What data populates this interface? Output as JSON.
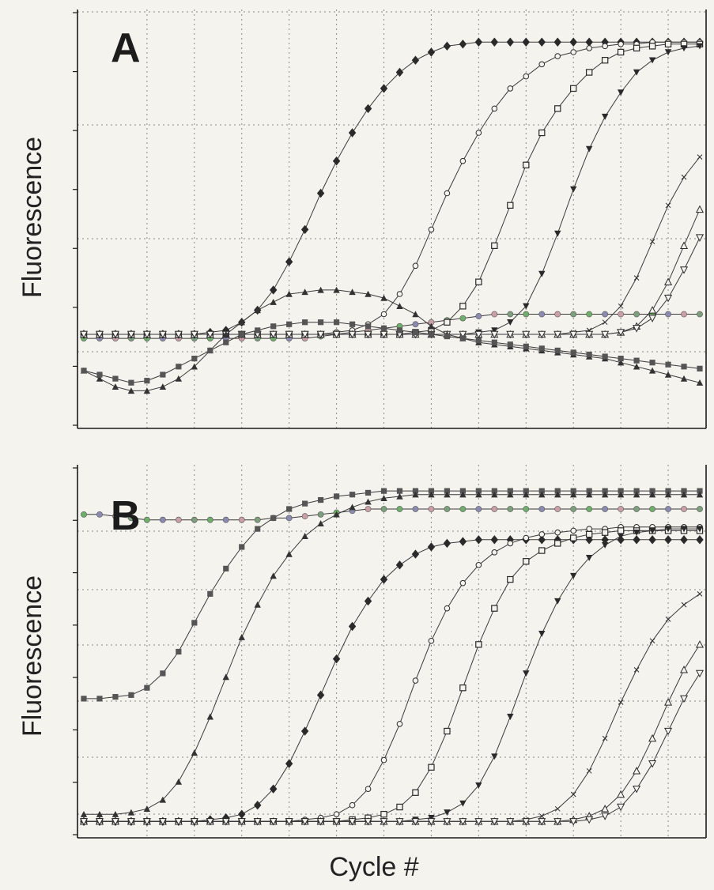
{
  "chart_data": [
    {
      "type": "line",
      "panel_label": "A",
      "ylabel": "Fluorescence",
      "xlabel": "",
      "x": [
        1,
        2,
        3,
        4,
        5,
        6,
        7,
        8,
        9,
        10,
        11,
        12,
        13,
        14,
        15,
        16,
        17,
        18,
        19,
        20,
        21,
        22,
        23,
        24,
        25,
        26,
        27,
        28,
        29,
        30,
        31,
        32,
        33,
        34,
        35,
        36,
        37,
        38,
        39,
        40
      ],
      "xlim": [
        1,
        40
      ],
      "ylim": [
        0,
        100
      ],
      "grid": true,
      "series": [
        {
          "marker": "circle-small",
          "values": [
            19,
            19,
            19,
            19,
            19,
            19,
            19,
            19,
            19,
            19,
            19,
            19,
            19,
            19,
            19,
            19.5,
            20,
            20.5,
            21,
            21.5,
            22,
            22.5,
            23,
            23.5,
            24,
            24.5,
            25,
            25,
            25,
            25,
            25,
            25,
            25,
            25,
            25,
            25,
            25,
            25,
            25,
            25
          ]
        },
        {
          "marker": "diamond",
          "values": [
            20,
            20,
            20,
            20,
            20,
            20,
            20,
            20,
            20.5,
            21,
            23,
            26,
            31,
            38,
            46,
            55,
            63,
            70,
            76,
            81,
            85,
            88,
            90,
            91.5,
            92,
            92.5,
            92.5,
            92.5,
            92.5,
            92.5,
            92.5,
            92.5,
            92.5,
            92.5,
            92.5,
            92.5,
            92.5,
            92.5,
            92.5,
            92.5
          ]
        },
        {
          "marker": "circle-open",
          "values": [
            20,
            20,
            20,
            20,
            20,
            20,
            20,
            20,
            20,
            20,
            20,
            20,
            20,
            20,
            20,
            20,
            20.5,
            21,
            22.5,
            25,
            30,
            37,
            46,
            55,
            63,
            70,
            76,
            81,
            84,
            87,
            89,
            90,
            91,
            91.5,
            92,
            92,
            92.5,
            92.5,
            92.5,
            92.5
          ]
        },
        {
          "marker": "square-open",
          "values": [
            20,
            20,
            20,
            20,
            20,
            20,
            20,
            20,
            20,
            20,
            20,
            20,
            20,
            20,
            20,
            20,
            20,
            20,
            20,
            20,
            20,
            20.5,
            21,
            23,
            27,
            33,
            42,
            52,
            62,
            70,
            76,
            81,
            85,
            88,
            90,
            91,
            91.5,
            92,
            92,
            92
          ]
        },
        {
          "marker": "triangle-down-filled",
          "values": [
            20,
            20,
            20,
            20,
            20,
            20,
            20,
            20,
            20,
            20,
            20,
            20,
            20,
            20,
            20,
            20,
            20,
            20,
            20,
            20,
            20,
            20,
            20,
            20,
            20,
            20.5,
            21,
            23,
            27,
            35,
            45,
            56,
            66,
            74,
            80,
            85,
            88,
            90,
            91,
            91.5
          ]
        },
        {
          "marker": "cross",
          "values": [
            20,
            20,
            20,
            20,
            20,
            20,
            20,
            20,
            20,
            20,
            20,
            20,
            20,
            20,
            20,
            20,
            20,
            20,
            20,
            20,
            20,
            20,
            20,
            20,
            20,
            20,
            20,
            20,
            20,
            20,
            20,
            20.5,
            21,
            23,
            27,
            34,
            43,
            52,
            59,
            64
          ]
        },
        {
          "marker": "triangle-up-open",
          "values": [
            20,
            20,
            20,
            20,
            20,
            20,
            20,
            20,
            20,
            20,
            20,
            20,
            20,
            20,
            20,
            20,
            20,
            20,
            20,
            20,
            20,
            20,
            20,
            20,
            20,
            20,
            20,
            20,
            20,
            20,
            20,
            20,
            20,
            20,
            20.5,
            22,
            26,
            33,
            42,
            51
          ]
        },
        {
          "marker": "triangle-down-open",
          "values": [
            20,
            20,
            20,
            20,
            20,
            20,
            20,
            20,
            20,
            20,
            20,
            20,
            20,
            20,
            20,
            20,
            20,
            20,
            20,
            20,
            20,
            20,
            20,
            20,
            20,
            20,
            20,
            20,
            20,
            20,
            20,
            20,
            20,
            20,
            20.5,
            21.5,
            24,
            29,
            36,
            44
          ]
        },
        {
          "marker": "triangle-up-filled",
          "values": [
            11,
            9,
            7,
            6,
            6,
            7,
            9,
            12,
            16,
            20,
            23,
            26,
            28,
            30,
            30.5,
            31,
            31,
            30.5,
            30,
            29,
            27,
            25,
            22,
            20,
            19,
            18,
            17.5,
            17,
            16.5,
            16,
            15.5,
            15,
            14.5,
            14,
            13,
            12,
            11,
            10,
            9,
            8
          ]
        },
        {
          "marker": "square-filled",
          "values": [
            11,
            10,
            9,
            8,
            8.5,
            10,
            12,
            14,
            16,
            18,
            20,
            21,
            22,
            22.5,
            23,
            23,
            23,
            22.5,
            22,
            21.5,
            21,
            20.5,
            20,
            19.5,
            19,
            18.5,
            18,
            17.5,
            17,
            16.5,
            16,
            15.5,
            15,
            14.5,
            14,
            13.5,
            13,
            12.5,
            12,
            11.5
          ]
        }
      ]
    },
    {
      "type": "line",
      "panel_label": "B",
      "ylabel": "Fluorescence",
      "xlabel": "Cycle #",
      "x": [
        1,
        2,
        3,
        4,
        5,
        6,
        7,
        8,
        9,
        10,
        11,
        12,
        13,
        14,
        15,
        16,
        17,
        18,
        19,
        20,
        21,
        22,
        23,
        24,
        25,
        26,
        27,
        28,
        29,
        30,
        31,
        32,
        33,
        34,
        35,
        36,
        37,
        38,
        39,
        40
      ],
      "xlim": [
        1,
        40
      ],
      "ylim": [
        0,
        100
      ],
      "grid": true,
      "series": [
        {
          "marker": "circle-small",
          "values": [
            88,
            88,
            87.5,
            87,
            86.5,
            86.5,
            86.5,
            86.5,
            86.5,
            86.5,
            86.5,
            86.5,
            87,
            87,
            87.5,
            88,
            88.5,
            89,
            89.5,
            89.5,
            89.5,
            89.5,
            89.5,
            89.5,
            89.5,
            89.5,
            89.5,
            89.5,
            89.5,
            89.5,
            89.5,
            89.5,
            89.5,
            89.5,
            89.5,
            89.5,
            89.5,
            89.5,
            89.5,
            89.5
          ]
        },
        {
          "marker": "square-filled",
          "values": [
            37,
            37,
            37.5,
            38,
            40,
            44,
            50,
            58,
            66,
            73,
            79,
            84,
            87,
            89.5,
            91,
            92,
            93,
            93.5,
            94,
            94.5,
            94.5,
            94.5,
            94.5,
            94.5,
            94.5,
            94.5,
            94.5,
            94.5,
            94.5,
            94.5,
            94.5,
            94.5,
            94.5,
            94.5,
            94.5,
            94.5,
            94.5,
            94.5,
            94.5,
            94.5
          ]
        },
        {
          "marker": "triangle-up-filled",
          "values": [
            5,
            5,
            5,
            5.5,
            6.5,
            9,
            14,
            22,
            32,
            43,
            54,
            63,
            71,
            77,
            82,
            85.5,
            88,
            90,
            91.5,
            92.5,
            93,
            93.5,
            93.5,
            93.5,
            93.5,
            93.5,
            93.5,
            93.5,
            93.5,
            93.5,
            93.5,
            93.5,
            93.5,
            93.5,
            93.5,
            93.5,
            93.5,
            93.5,
            93.5,
            93.5
          ]
        },
        {
          "marker": "diamond",
          "values": [
            3,
            3,
            3,
            3,
            3,
            3,
            3,
            3,
            3.5,
            4,
            5,
            7.5,
            12,
            19,
            28,
            38,
            48,
            57,
            64,
            70,
            74,
            77,
            79,
            80,
            80.5,
            81,
            81,
            81,
            81,
            81,
            81,
            81,
            81,
            81,
            81,
            81,
            81,
            81,
            81,
            81
          ]
        },
        {
          "marker": "circle-open",
          "values": [
            3,
            3,
            3,
            3,
            3,
            3,
            3,
            3,
            3,
            3,
            3,
            3,
            3,
            3,
            3.5,
            4,
            5,
            7.5,
            12,
            20,
            30,
            42,
            53,
            62,
            69,
            74,
            77.5,
            80,
            81.5,
            82.5,
            83,
            83.5,
            84,
            84,
            84.5,
            84.5,
            84.5,
            84.5,
            84.5,
            84.5
          ]
        },
        {
          "marker": "square-open",
          "values": [
            3,
            3,
            3,
            3,
            3,
            3,
            3,
            3,
            3,
            3,
            3,
            3,
            3,
            3,
            3,
            3,
            3,
            3.5,
            4,
            5,
            7,
            11,
            18,
            28,
            40,
            52,
            62,
            70,
            75,
            78,
            80,
            81.5,
            82.5,
            83,
            83.5,
            83.5,
            83.5,
            83.5,
            83.5,
            83.5
          ]
        },
        {
          "marker": "triangle-down-filled",
          "values": [
            3,
            3,
            3,
            3,
            3,
            3,
            3,
            3,
            3,
            3,
            3,
            3,
            3,
            3,
            3,
            3,
            3,
            3,
            3,
            3,
            3,
            3.5,
            4,
            5.5,
            8,
            13,
            21,
            32,
            44,
            55,
            64,
            71,
            76,
            79.5,
            82,
            83,
            83.5,
            84,
            84,
            84
          ]
        },
        {
          "marker": "cross",
          "values": [
            3,
            3,
            3,
            3,
            3,
            3,
            3,
            3,
            3,
            3,
            3,
            3,
            3,
            3,
            3,
            3,
            3,
            3,
            3,
            3,
            3,
            3,
            3,
            3,
            3,
            3,
            3,
            3,
            3.5,
            4.5,
            6.5,
            10.5,
            17,
            26,
            36,
            45,
            53,
            59,
            63,
            66
          ]
        },
        {
          "marker": "triangle-up-open",
          "values": [
            3,
            3,
            3,
            3,
            3,
            3,
            3,
            3,
            3,
            3,
            3,
            3,
            3,
            3,
            3,
            3,
            3,
            3,
            3,
            3,
            3,
            3,
            3,
            3,
            3,
            3,
            3,
            3,
            3,
            3,
            3,
            3.5,
            4.5,
            6.5,
            10.5,
            17,
            26,
            36,
            45,
            52
          ]
        },
        {
          "marker": "triangle-down-open",
          "values": [
            3,
            3,
            3,
            3,
            3,
            3,
            3,
            3,
            3,
            3,
            3,
            3,
            3,
            3,
            3,
            3,
            3,
            3,
            3,
            3,
            3,
            3,
            3,
            3,
            3,
            3,
            3,
            3,
            3,
            3,
            3,
            3,
            3.5,
            4.5,
            7,
            12,
            19,
            28,
            37,
            44
          ]
        }
      ]
    }
  ]
}
